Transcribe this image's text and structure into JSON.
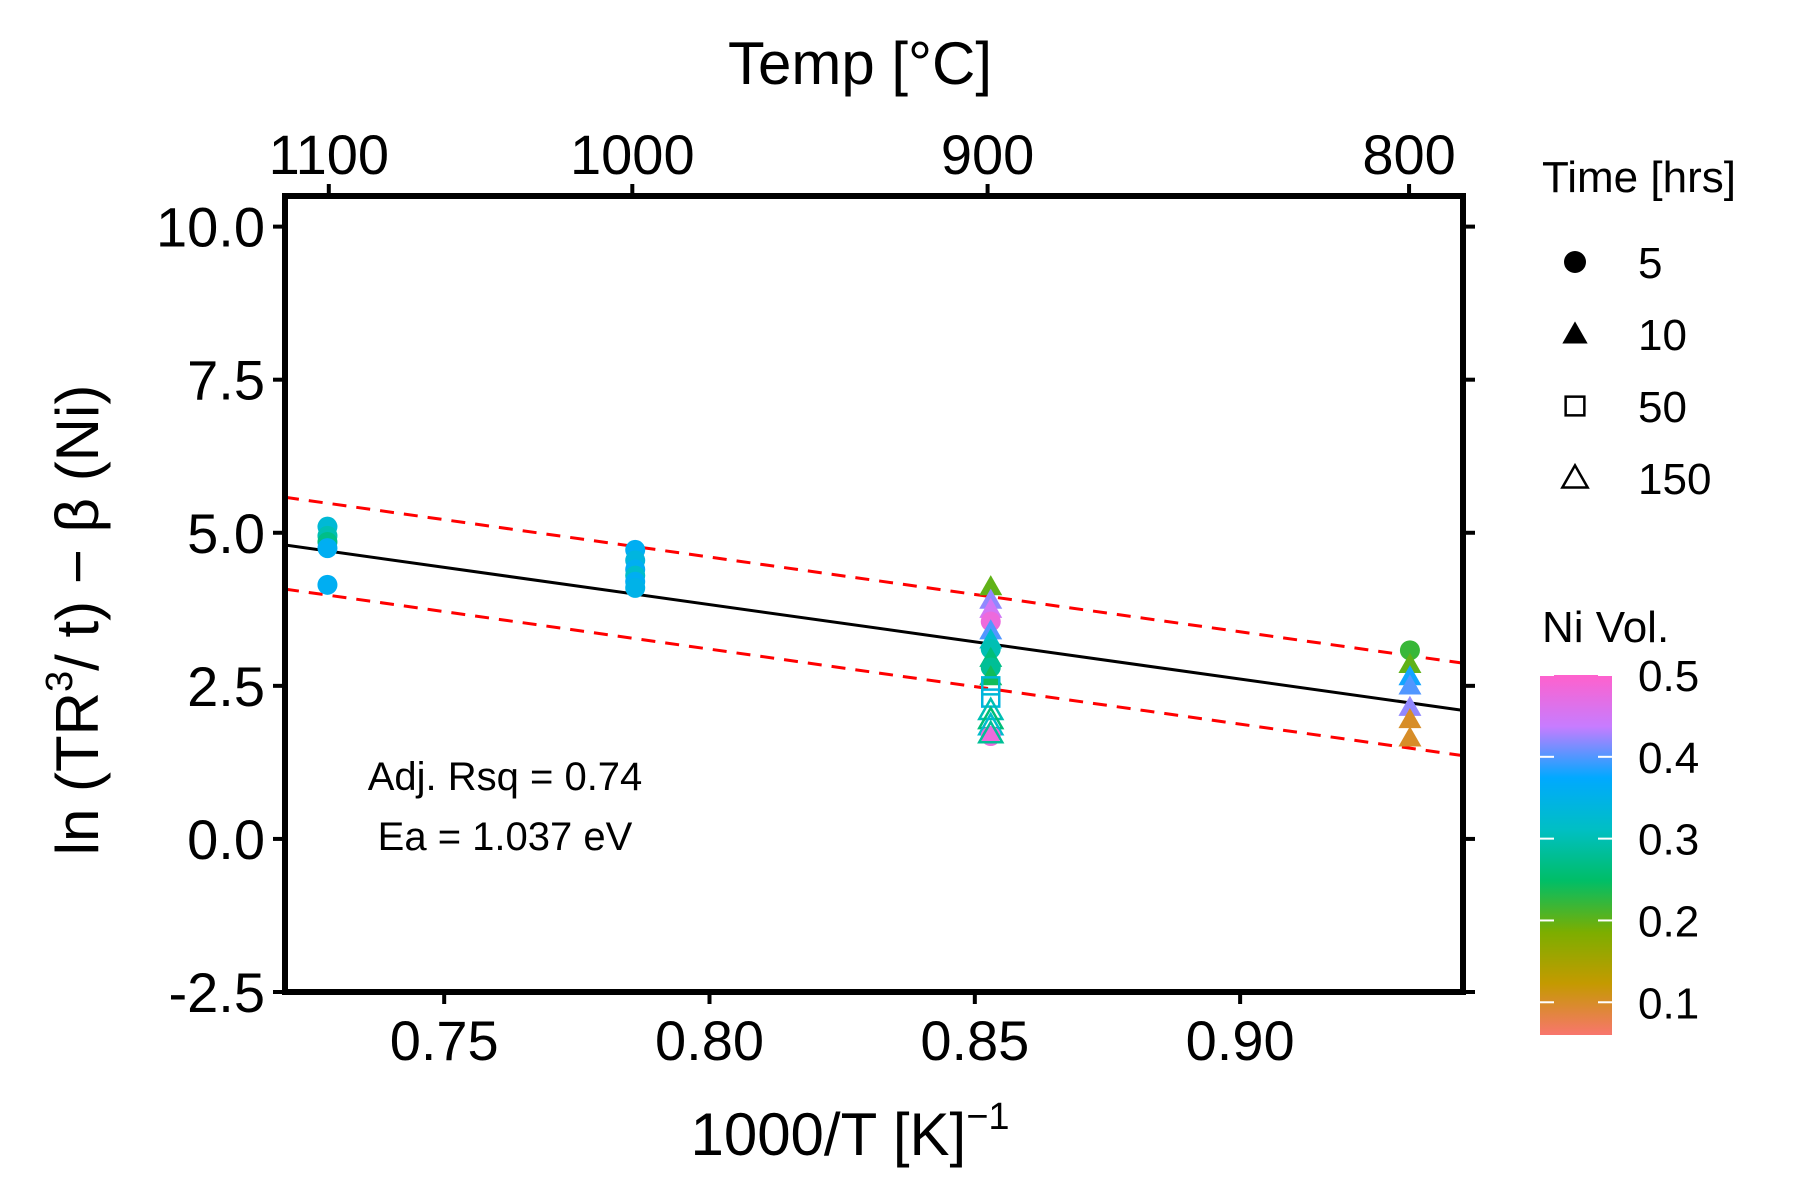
{
  "chart_data": {
    "type": "scatter",
    "title": "",
    "x_axis": {
      "label": "1000/T  [K]",
      "label_superscript": "−1",
      "range": [
        0.72,
        0.942
      ],
      "ticks": [
        0.75,
        0.8,
        0.85,
        0.9
      ],
      "tick_labels": [
        "0.75",
        "0.80",
        "0.85",
        "0.90"
      ]
    },
    "top_axis": {
      "label": "Temp [°C]",
      "ticks_celsius": [
        1100,
        1000,
        900,
        800
      ],
      "tick_labels": [
        "1100",
        "1000",
        "900",
        "800"
      ]
    },
    "y_axis": {
      "label_parts": [
        "ln (TR",
        "3",
        "/ t) − β (Ni)"
      ],
      "range": [
        -2.5,
        10.5
      ],
      "ticks": [
        -2.5,
        0.0,
        2.5,
        5.0,
        7.5,
        10.0
      ],
      "tick_labels": [
        "-2.5",
        "0.0",
        "2.5",
        "5.0",
        "7.5",
        "10.0"
      ]
    },
    "grid": false,
    "fit_line": {
      "x": [
        0.72,
        0.942
      ],
      "y": [
        4.8,
        2.1
      ],
      "color": "#000000"
    },
    "confidence_band": {
      "upper": {
        "x": [
          0.72,
          0.942
        ],
        "y": [
          5.58,
          2.87
        ]
      },
      "lower": {
        "x": [
          0.72,
          0.942
        ],
        "y": [
          4.08,
          1.36
        ]
      },
      "color": "#ff0000",
      "style": "dashed"
    },
    "annotations": [
      "Adj. Rsq = 0.74",
      "Ea = 1.037 eV"
    ],
    "legend_time": {
      "title": "Time [hrs]",
      "entries": [
        {
          "label": "5",
          "shape": "circle-filled"
        },
        {
          "label": "10",
          "shape": "triangle-filled"
        },
        {
          "label": "50",
          "shape": "square-open"
        },
        {
          "label": "150",
          "shape": "triangle-open"
        }
      ],
      "position": "right"
    },
    "legend_color": {
      "title": "Ni Vol.",
      "breaks": [
        0.5,
        0.4,
        0.3,
        0.2,
        0.1
      ],
      "labels": [
        "0.5",
        "0.4",
        "0.3",
        "0.2",
        "0.1"
      ],
      "range": [
        0.06,
        0.5
      ],
      "gradient": [
        "#F8766D",
        "#C49A00",
        "#7CAE00",
        "#00BE67",
        "#00BFC4",
        "#00A9FF",
        "#C77CFF",
        "#FF61CC"
      ],
      "position": "right"
    },
    "points": [
      {
        "x": 0.728,
        "y": 5.1,
        "time": 5,
        "ni": 0.33
      },
      {
        "x": 0.728,
        "y": 4.95,
        "time": 5,
        "ni": 0.3
      },
      {
        "x": 0.728,
        "y": 4.85,
        "time": 5,
        "ni": 0.27
      },
      {
        "x": 0.728,
        "y": 4.75,
        "time": 5,
        "ni": 0.36
      },
      {
        "x": 0.728,
        "y": 4.15,
        "time": 5,
        "ni": 0.36
      },
      {
        "x": 0.786,
        "y": 4.72,
        "time": 5,
        "ni": 0.36
      },
      {
        "x": 0.786,
        "y": 4.55,
        "time": 5,
        "ni": 0.34
      },
      {
        "x": 0.786,
        "y": 4.4,
        "time": 5,
        "ni": 0.36
      },
      {
        "x": 0.786,
        "y": 4.3,
        "time": 5,
        "ni": 0.32
      },
      {
        "x": 0.786,
        "y": 4.2,
        "time": 5,
        "ni": 0.36
      },
      {
        "x": 0.786,
        "y": 4.1,
        "time": 5,
        "ni": 0.35
      },
      {
        "x": 0.853,
        "y": 4.12,
        "time": 10,
        "ni": 0.2
      },
      {
        "x": 0.853,
        "y": 3.9,
        "time": 10,
        "ni": 0.42
      },
      {
        "x": 0.853,
        "y": 3.75,
        "time": 10,
        "ni": 0.45
      },
      {
        "x": 0.853,
        "y": 3.55,
        "time": 5,
        "ni": 0.48
      },
      {
        "x": 0.853,
        "y": 3.4,
        "time": 10,
        "ni": 0.4
      },
      {
        "x": 0.853,
        "y": 3.25,
        "time": 10,
        "ni": 0.32
      },
      {
        "x": 0.853,
        "y": 3.1,
        "time": 5,
        "ni": 0.3
      },
      {
        "x": 0.853,
        "y": 2.95,
        "time": 10,
        "ni": 0.26
      },
      {
        "x": 0.853,
        "y": 2.8,
        "time": 5,
        "ni": 0.28
      },
      {
        "x": 0.853,
        "y": 2.65,
        "time": 10,
        "ni": 0.24
      },
      {
        "x": 0.853,
        "y": 2.5,
        "time": 50,
        "ni": 0.33
      },
      {
        "x": 0.853,
        "y": 2.3,
        "time": 50,
        "ni": 0.34
      },
      {
        "x": 0.853,
        "y": 2.1,
        "time": 150,
        "ni": 0.3
      },
      {
        "x": 0.853,
        "y": 1.95,
        "time": 150,
        "ni": 0.26
      },
      {
        "x": 0.853,
        "y": 1.85,
        "time": 150,
        "ni": 0.32
      },
      {
        "x": 0.853,
        "y": 1.68,
        "time": 5,
        "ni": 0.48
      },
      {
        "x": 0.853,
        "y": 1.72,
        "time": 150,
        "ni": 0.28
      },
      {
        "x": 0.932,
        "y": 3.08,
        "time": 5,
        "ni": 0.22
      },
      {
        "x": 0.932,
        "y": 2.85,
        "time": 10,
        "ni": 0.2
      },
      {
        "x": 0.932,
        "y": 2.65,
        "time": 10,
        "ni": 0.38
      },
      {
        "x": 0.932,
        "y": 2.5,
        "time": 10,
        "ni": 0.4
      },
      {
        "x": 0.932,
        "y": 2.15,
        "time": 10,
        "ni": 0.42
      },
      {
        "x": 0.932,
        "y": 1.95,
        "time": 10,
        "ni": 0.1
      },
      {
        "x": 0.932,
        "y": 1.65,
        "time": 10,
        "ni": 0.1
      }
    ]
  }
}
